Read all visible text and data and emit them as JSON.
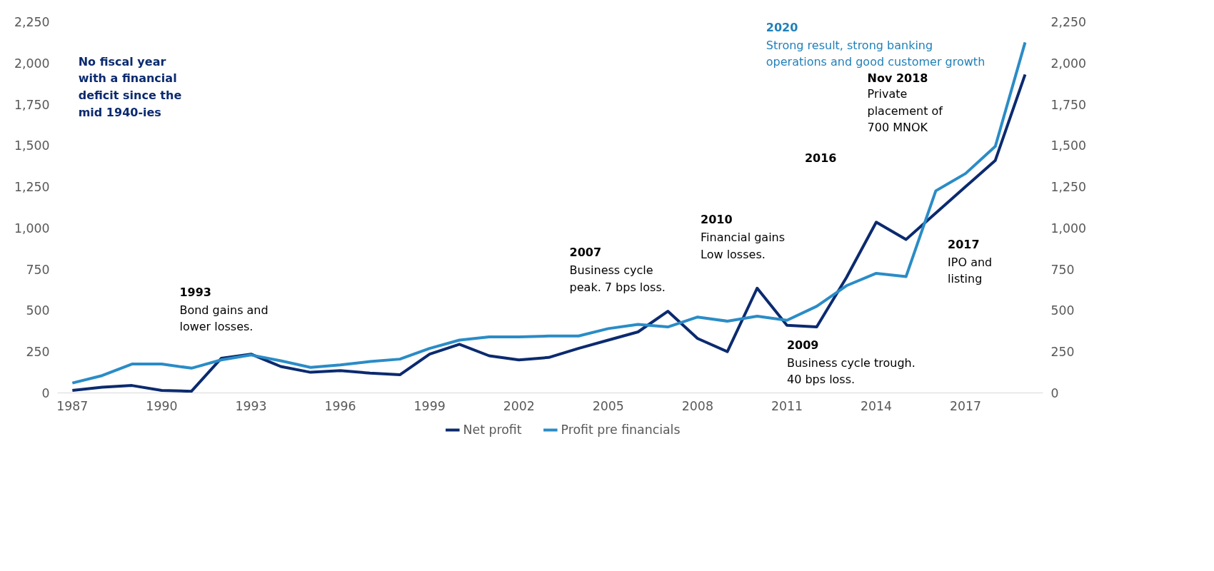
{
  "chart_data": {
    "type": "line",
    "x": [
      1987,
      1988,
      1989,
      1990,
      1991,
      1992,
      1993,
      1994,
      1995,
      1996,
      1997,
      1998,
      1999,
      2000,
      2001,
      2002,
      2003,
      2004,
      2005,
      2006,
      2007,
      2008,
      2009,
      2010,
      2011,
      2012,
      2013,
      2014,
      2015,
      2016,
      2017,
      2018,
      2019
    ],
    "series": [
      {
        "name": "Net profit",
        "color": "#0b2a6f",
        "values": [
          15,
          35,
          45,
          15,
          10,
          210,
          235,
          160,
          125,
          135,
          120,
          110,
          235,
          295,
          225,
          200,
          215,
          270,
          320,
          370,
          495,
          330,
          250,
          635,
          410,
          400,
          700,
          1035,
          930,
          1090,
          1250,
          1410,
          1930
        ]
      },
      {
        "name": "Profit pre financials",
        "color": "#2a8cc6",
        "values": [
          60,
          105,
          175,
          175,
          150,
          200,
          230,
          195,
          155,
          170,
          190,
          205,
          270,
          320,
          340,
          340,
          345,
          345,
          390,
          415,
          400,
          460,
          435,
          465,
          440,
          525,
          650,
          725,
          705,
          1225,
          1330,
          1495,
          2125
        ]
      }
    ],
    "xlim": [
      1986.5,
      2019.6
    ],
    "xticks": [
      1987,
      1990,
      1993,
      1996,
      1999,
      2002,
      2005,
      2008,
      2011,
      2014,
      2017
    ],
    "ylim": [
      0,
      2250
    ],
    "yticks": [
      {
        "value": 0,
        "label": "0"
      },
      {
        "value": 250,
        "label": "250"
      },
      {
        "value": 500,
        "label": "500"
      },
      {
        "value": 750,
        "label": "750"
      },
      {
        "value": 1000,
        "label": "1,000"
      },
      {
        "value": 1250,
        "label": "1,250"
      },
      {
        "value": 1500,
        "label": "1,500"
      },
      {
        "value": 1750,
        "label": "1,750"
      },
      {
        "value": 2000,
        "label": "2,000"
      },
      {
        "value": 2250,
        "label": "2,250"
      }
    ],
    "y2lim": [
      0,
      2250
    ],
    "y2ticks": [
      {
        "value": 0,
        "label": "0"
      },
      {
        "value": 250,
        "label": "250"
      },
      {
        "value": 500,
        "label": "500"
      },
      {
        "value": 750,
        "label": "750"
      },
      {
        "value": 1000,
        "label": "1,000"
      },
      {
        "value": 1250,
        "label": "1,250"
      },
      {
        "value": 1500,
        "label": "1,500"
      },
      {
        "value": 1750,
        "label": "1,750"
      },
      {
        "value": 2000,
        "label": "2,000"
      },
      {
        "value": 2250,
        "label": "2,250"
      }
    ],
    "grid": false,
    "legend": "bottom",
    "line_style": "solid",
    "marker": "none",
    "annotations": [
      "No fiscal year\nwith a financial\ndeficit since the\nmid 1940-ies",
      "1993\nBond gains and\nlower losses.",
      "2007\nBusiness cycle\npeak. 7 bps loss.",
      "2010\nFinancial gains\nLow losses.",
      "2009\nBusiness cycle trough.\n40 bps loss.",
      "2016",
      "Nov 2018\nPrivate\nplacement of\n700 MNOK",
      "2017\nIPO and\nlisting",
      "2020\nStrong result, strong banking\noperations and good customer growth"
    ]
  }
}
